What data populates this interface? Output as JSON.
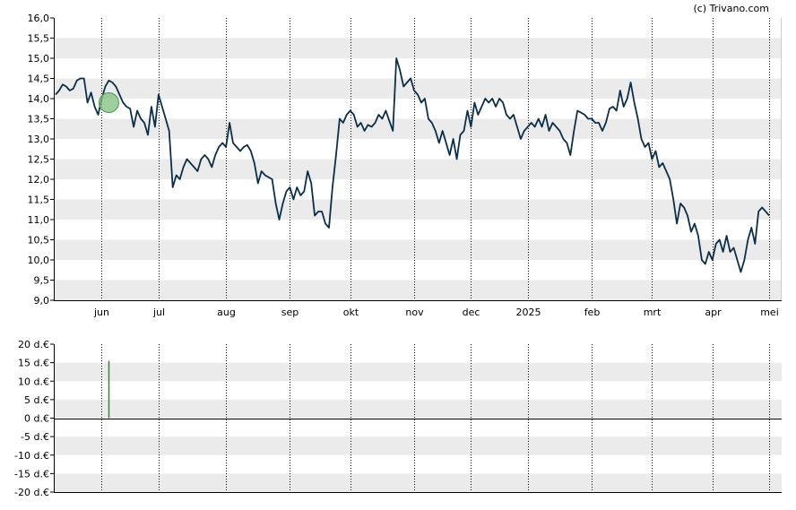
{
  "copyright": "(c) Trivano.com",
  "colors": {
    "price_line": "#0b2f4a",
    "band": "#ebebeb",
    "marker_fill": "#7fbf7f",
    "marker_stroke": "#4a9a4a",
    "volume_bar": "#2e8b2e",
    "axis": "#000000",
    "month_grid": "#000000"
  },
  "chart_data": [
    {
      "type": "line",
      "name": "price",
      "title": "",
      "xlabel": "",
      "ylabel": "",
      "ylim": [
        9.0,
        16.0
      ],
      "y_ticks": [
        "9,0",
        "9,5",
        "10,0",
        "10,5",
        "11,0",
        "11,5",
        "12,0",
        "12,5",
        "13,0",
        "13,5",
        "14,0",
        "14,5",
        "15,0",
        "15,5",
        "16,0"
      ],
      "y_tick_values": [
        9.0,
        9.5,
        10.0,
        10.5,
        11.0,
        11.5,
        12.0,
        12.5,
        13.0,
        13.5,
        14.0,
        14.5,
        15.0,
        15.5,
        16.0
      ],
      "grid": "alternating horizontal bands, dotted vertical month lines",
      "x_ticks": [
        {
          "label": "jun",
          "index": 13
        },
        {
          "label": "jul",
          "index": 29
        },
        {
          "label": "aug",
          "index": 48
        },
        {
          "label": "sep",
          "index": 66
        },
        {
          "label": "okt",
          "index": 83
        },
        {
          "label": "nov",
          "index": 101
        },
        {
          "label": "dec",
          "index": 117
        },
        {
          "label": "2025",
          "index": 133
        },
        {
          "label": "feb",
          "index": 151
        },
        {
          "label": "mrt",
          "index": 168
        },
        {
          "label": "apr",
          "index": 185
        },
        {
          "label": "mei",
          "index": 201
        }
      ],
      "x_count": 205,
      "values": [
        14.1,
        14.2,
        14.35,
        14.3,
        14.2,
        14.25,
        14.45,
        14.5,
        14.5,
        13.9,
        14.15,
        13.8,
        13.6,
        14.0,
        14.3,
        14.45,
        14.4,
        14.3,
        14.1,
        13.9,
        13.8,
        13.75,
        13.3,
        13.7,
        13.5,
        13.4,
        13.1,
        13.8,
        13.3,
        14.1,
        13.8,
        13.5,
        13.2,
        11.8,
        12.1,
        12.0,
        12.3,
        12.5,
        12.4,
        12.3,
        12.2,
        12.5,
        12.6,
        12.5,
        12.3,
        12.6,
        12.8,
        12.9,
        12.8,
        13.4,
        12.9,
        12.8,
        12.7,
        12.8,
        12.85,
        12.7,
        12.4,
        11.9,
        12.2,
        12.1,
        12.05,
        12.0,
        11.4,
        11.0,
        11.4,
        11.7,
        11.8,
        11.5,
        11.8,
        11.6,
        11.7,
        12.2,
        11.9,
        11.1,
        11.2,
        11.2,
        10.9,
        10.8,
        11.8,
        12.6,
        13.5,
        13.4,
        13.6,
        13.7,
        13.6,
        13.3,
        13.4,
        13.2,
        13.35,
        13.3,
        13.4,
        13.6,
        13.5,
        13.7,
        13.45,
        13.2,
        15.0,
        14.7,
        14.3,
        14.4,
        14.5,
        14.2,
        14.1,
        13.9,
        14.0,
        13.5,
        13.4,
        13.2,
        12.9,
        13.2,
        12.9,
        12.6,
        13.0,
        12.5,
        13.1,
        13.2,
        13.7,
        13.3,
        13.9,
        13.6,
        13.8,
        14.0,
        13.9,
        14.0,
        13.8,
        14.0,
        13.9,
        13.6,
        13.5,
        13.6,
        13.3,
        13.0,
        13.2,
        13.3,
        13.4,
        13.3,
        13.5,
        13.3,
        13.6,
        13.2,
        13.4,
        13.3,
        13.2,
        13.0,
        12.9,
        12.6,
        13.2,
        13.7,
        13.65,
        13.6,
        13.5,
        13.5,
        13.4,
        13.4,
        13.2,
        13.4,
        13.75,
        13.8,
        13.7,
        14.2,
        13.8,
        14.0,
        14.4,
        13.9,
        13.5,
        13.0,
        12.8,
        12.9,
        12.5,
        12.7,
        12.3,
        12.4,
        12.2,
        12.0,
        11.5,
        10.9,
        11.4,
        11.3,
        11.1,
        10.7,
        10.9,
        10.6,
        10.0,
        9.9,
        10.2,
        10.0,
        10.4,
        10.5,
        10.2,
        10.6,
        10.2,
        10.3,
        10.0,
        9.7,
        10.0,
        10.5,
        10.8,
        10.4,
        11.2,
        11.3,
        11.2,
        11.1
      ]
    },
    {
      "type": "bar",
      "name": "volume",
      "ylim": [
        -20,
        20
      ],
      "y_ticks": [
        "20 d.€",
        "15 d.€",
        "10 d.€",
        "5 d.€",
        "0 d.€",
        "-5 d.€",
        "-10 d.€",
        "-15 d.€",
        "-20 d.€"
      ],
      "y_tick_values": [
        20,
        15,
        10,
        5,
        0,
        -5,
        -10,
        -15,
        -20
      ],
      "bars": [
        {
          "index": 15,
          "value": 15.5
        }
      ]
    }
  ],
  "markers": [
    {
      "index": 15,
      "value": 13.9,
      "chart": 0
    }
  ]
}
